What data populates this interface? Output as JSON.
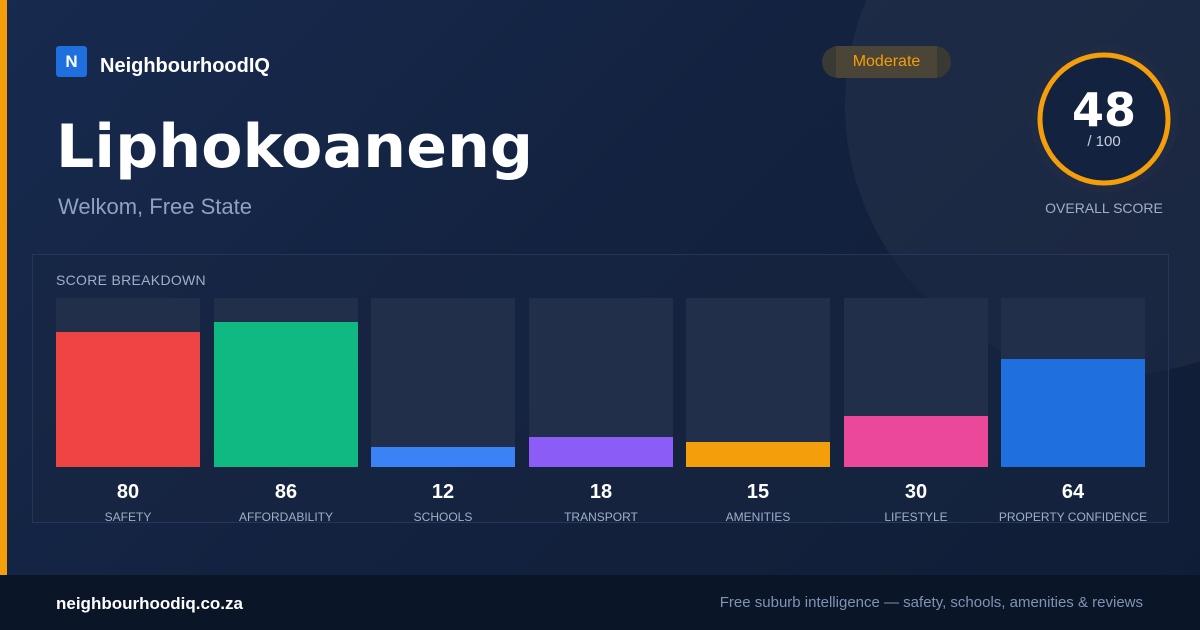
{
  "brand": {
    "logo_letter": "N",
    "name": "NeighbourhoodIQ"
  },
  "suburb": {
    "name": "Liphokoaneng",
    "location": "Welkom, Free State"
  },
  "rating_badge": "Moderate",
  "score": {
    "value": "48",
    "out_of": "/ 100",
    "label": "OVERALL SCORE",
    "fraction": 0.48
  },
  "breakdown": {
    "title": "SCORE BREAKDOWN",
    "items": [
      {
        "label": "SAFETY",
        "value": "80",
        "score": 80,
        "color": "#ef4444"
      },
      {
        "label": "AFFORDABILITY",
        "value": "86",
        "score": 86,
        "color": "#10b981"
      },
      {
        "label": "SCHOOLS",
        "value": "12",
        "score": 12,
        "color": "#3b82f6"
      },
      {
        "label": "TRANSPORT",
        "value": "18",
        "score": 18,
        "color": "#8b5cf6"
      },
      {
        "label": "AMENITIES",
        "value": "15",
        "score": 15,
        "color": "#f59e0b"
      },
      {
        "label": "LIFESTYLE",
        "value": "30",
        "score": 30,
        "color": "#ec4899"
      },
      {
        "label": "PROPERTY CONFIDENCE",
        "value": "64",
        "score": 64,
        "color": "#1f6fde"
      }
    ]
  },
  "footer": {
    "domain": "neighbourhoodiq.co.za",
    "tagline": "Free suburb intelligence — safety, schools, amenities & reviews"
  },
  "colors": {
    "accent": "#f59e0b",
    "brand_blue": "#1f6fde"
  }
}
